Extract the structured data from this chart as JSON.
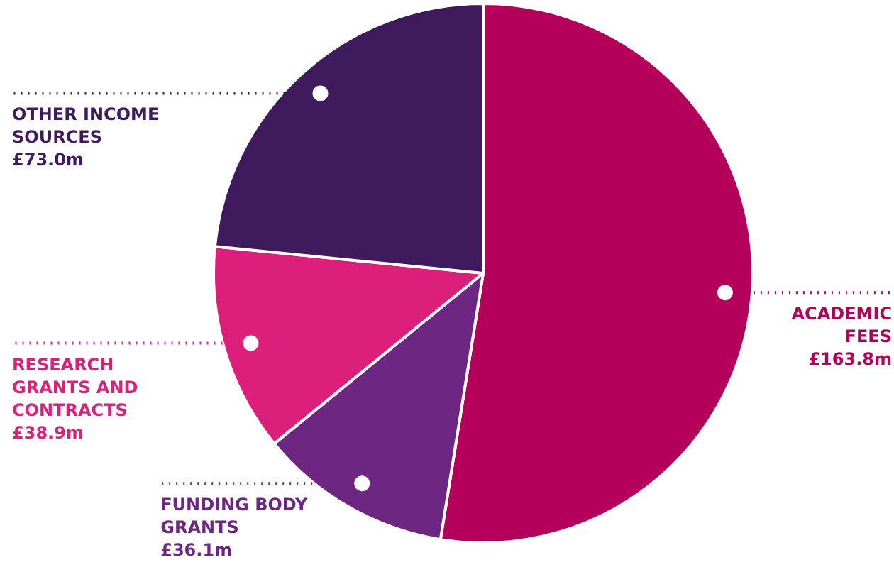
{
  "chart_data": {
    "type": "pie",
    "categories": [
      "ACADEMIC FEES",
      "FUNDING BODY GRANTS",
      "RESEARCH GRANTS AND CONTRACTS",
      "OTHER INCOME SOURCES"
    ],
    "values": [
      163.8,
      36.1,
      38.9,
      73.0
    ],
    "colors": [
      "#b5005b",
      "#6e2683",
      "#dc1f7a",
      "#3f1a5c"
    ],
    "value_labels": [
      "£163.8m",
      "£36.1m",
      "£38.9m",
      "£73.0m"
    ]
  }
}
